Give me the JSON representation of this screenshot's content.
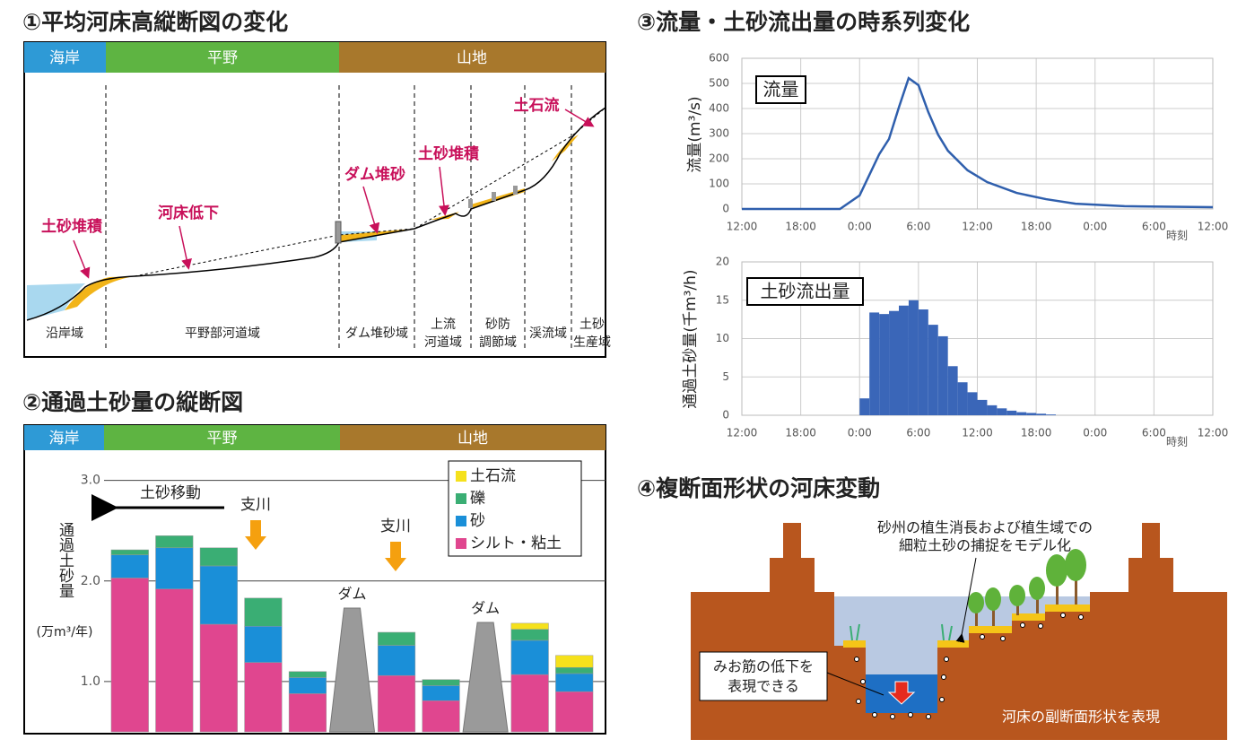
{
  "chart_data": [
    {
      "type": "stacked_bar",
      "title": "②通過土砂量の縦断図",
      "regions": [
        "海岸",
        "平野",
        "山地"
      ],
      "ylabel": "通過土砂量",
      "yunit": "(万m³/年)",
      "categories": [
        null,
        null,
        null,
        null,
        null,
        null,
        null,
        null,
        null,
        null,
        null
      ],
      "series": [
        {
          "name": "シルト・粘土",
          "color": "#e0468f",
          "values": [
            2.03,
            1.92,
            1.57,
            1.19,
            0.88,
            null,
            1.06,
            0.81,
            null,
            1.07,
            0.9
          ]
        },
        {
          "name": "砂",
          "color": "#1a8fd8",
          "values": [
            0.23,
            0.41,
            0.58,
            0.36,
            0.16,
            null,
            0.3,
            0.15,
            null,
            0.34,
            0.18
          ]
        },
        {
          "name": "礫",
          "color": "#3aae74",
          "values": [
            0.05,
            0.12,
            0.18,
            0.28,
            0.06,
            null,
            0.13,
            0.06,
            null,
            0.11,
            0.06
          ]
        },
        {
          "name": "土石流",
          "color": "#f5e11c",
          "values": [
            0,
            0,
            0,
            0,
            0,
            null,
            0,
            0,
            null,
            0.06,
            0.12
          ]
        }
      ],
      "ylim": [
        0.5,
        3.3
      ],
      "yticks": [
        {
          "value": 1,
          "label": "1.0"
        },
        {
          "value": 2,
          "label": "2.0"
        },
        {
          "value": 3,
          "label": "3.0"
        }
      ],
      "grid": true,
      "annotations": {
        "transport": "土砂移動",
        "tributaries": [
          "支川",
          "支川"
        ],
        "dams": [
          "ダム",
          "ダム"
        ]
      }
    },
    {
      "type": "line",
      "title": "③流量・土砂流出量の時系列変化",
      "box_label": "流量",
      "ylabel": "流量(m³/s)",
      "xlabel": "時刻",
      "x": [
        0,
        10,
        12,
        14,
        15,
        16,
        17,
        18,
        19,
        20,
        21,
        23,
        25,
        28,
        31,
        34,
        39,
        48
      ],
      "values": [
        0,
        0,
        54,
        218,
        279,
        404,
        521,
        493,
        386,
        296,
        232,
        154,
        107,
        64,
        39,
        21,
        11,
        7
      ],
      "color": "#2f5fad",
      "xlim": [
        0,
        48
      ],
      "xticks": [
        {
          "value": 0,
          "label": "12:00"
        },
        {
          "value": 6,
          "label": "18:00"
        },
        {
          "value": 12,
          "label": "0:00"
        },
        {
          "value": 18,
          "label": "6:00"
        },
        {
          "value": 24,
          "label": "12:00"
        },
        {
          "value": 30,
          "label": "18:00"
        },
        {
          "value": 36,
          "label": "0:00"
        },
        {
          "value": 42,
          "label": "6:00"
        },
        {
          "value": 48,
          "label": "12:00"
        }
      ],
      "ylim": [
        0,
        600
      ],
      "yticks": [
        0,
        100,
        200,
        300,
        400,
        500,
        600
      ],
      "grid": true
    },
    {
      "type": "histogram",
      "box_label": "土砂流出量",
      "ylabel": "通過土砂量(千m³/h)",
      "xlabel": "時刻",
      "bins": [
        12,
        13,
        14,
        15,
        16,
        17,
        18,
        19,
        20,
        21,
        22,
        23,
        24,
        25,
        26,
        27,
        28,
        29,
        30,
        31,
        32
      ],
      "values": [
        2.2,
        13.4,
        13.2,
        13.6,
        14.3,
        15.0,
        13.8,
        11.8,
        10.3,
        6.4,
        4.3,
        3.0,
        2.0,
        1.3,
        0.9,
        0.6,
        0.4,
        0.3,
        0.2,
        0.1
      ],
      "color": "#3a66b8",
      "xlim": [
        0,
        48
      ],
      "xticks": [
        {
          "value": 0,
          "label": "12:00"
        },
        {
          "value": 6,
          "label": "18:00"
        },
        {
          "value": 12,
          "label": "0:00"
        },
        {
          "value": 18,
          "label": "6:00"
        },
        {
          "value": 24,
          "label": "12:00"
        },
        {
          "value": 30,
          "label": "18:00"
        },
        {
          "value": 36,
          "label": "0:00"
        },
        {
          "value": 42,
          "label": "6:00"
        },
        {
          "value": 48,
          "label": "12:00"
        }
      ],
      "ylim": [
        0,
        20
      ],
      "yticks": [
        0,
        5,
        10,
        15,
        20
      ],
      "grid": true
    }
  ],
  "diagrams": {
    "profile": {
      "title": "①平均河床高縦断図の変化",
      "regions": [
        "海岸",
        "平野",
        "山地"
      ],
      "labels": [
        "土砂堆積",
        "河床低下",
        "ダム堆砂",
        "土砂堆積",
        "土石流"
      ],
      "zones": [
        [
          "沿岸域"
        ],
        [
          "平野部河道域"
        ],
        [
          "ダム堆砂域"
        ],
        [
          "上流",
          "河道域"
        ],
        [
          "砂防",
          "調節域"
        ],
        [
          "渓流域"
        ],
        [
          "土砂",
          "生産域"
        ]
      ]
    },
    "cross_section": {
      "title": "④複断面形状の河床変動",
      "vegetation_note": [
        "砂州の植生消長および植生域での",
        "細粒土砂の捕捉をモデル化"
      ],
      "thalweg_note": [
        "みお筋の低下を",
        "表現できる"
      ],
      "section_note": "河床の副断面形状を表現"
    }
  }
}
